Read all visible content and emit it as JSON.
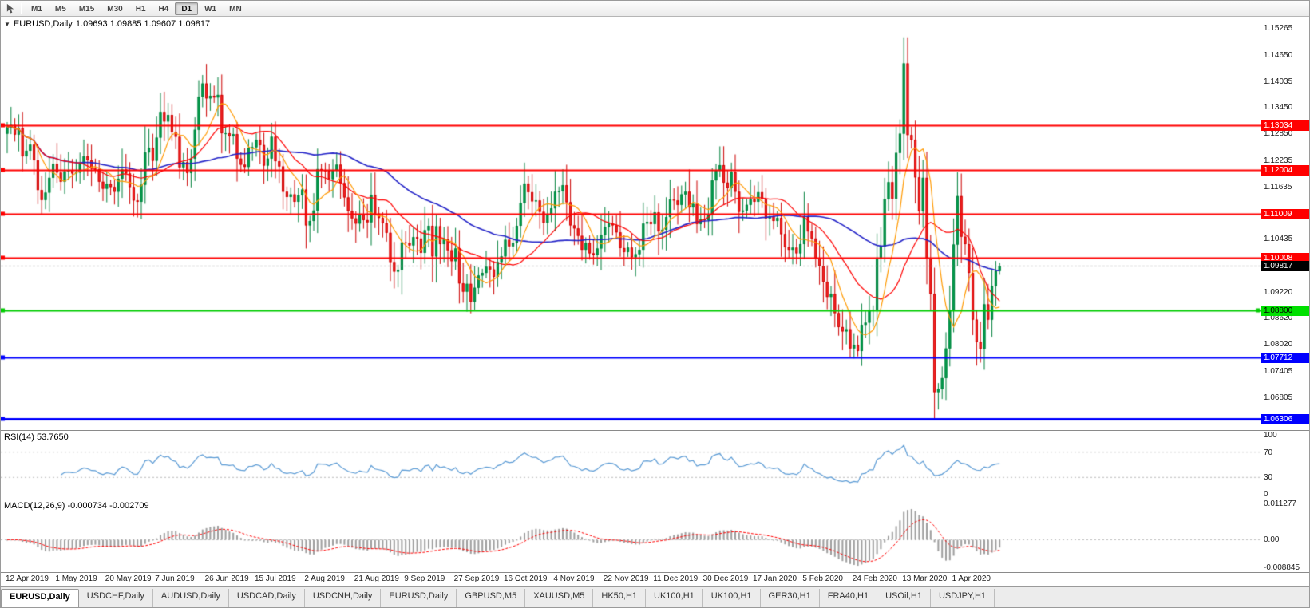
{
  "toolbar": {
    "timeframes": [
      "M1",
      "M5",
      "M15",
      "M30",
      "H1",
      "H4",
      "D1",
      "W1",
      "MN"
    ],
    "active_timeframe": "D1"
  },
  "chart": {
    "symbol_header": "EURUSD,Daily",
    "ohlc_text": "1.09693 1.09885 1.09607 1.09817",
    "price_min": 1.0605,
    "price_max": 1.1552,
    "price_axis_ticks": [
      "1.15265",
      "1.14650",
      "1.14035",
      "1.13450",
      "1.12850",
      "1.12235",
      "1.11635",
      "1.11035",
      "1.10435",
      "1.09820",
      "1.09220",
      "1.08620",
      "1.08020",
      "1.07405",
      "1.06805"
    ],
    "hlines": [
      {
        "label": "1.13034",
        "price": 1.13034,
        "color": "#ff0000",
        "badge_bg": "#ff0000",
        "badge_fg": "#ffffff",
        "width": 2
      },
      {
        "label": "1.12004",
        "price": 1.12004,
        "color": "#ff0000",
        "badge_bg": "#ff0000",
        "badge_fg": "#ffffff",
        "width": 2
      },
      {
        "label": "1.11009",
        "price": 1.11009,
        "color": "#ff0000",
        "badge_bg": "#ff0000",
        "badge_fg": "#ffffff",
        "width": 2
      },
      {
        "label": "1.10008",
        "price": 1.10008,
        "color": "#ff0000",
        "badge_bg": "#ff0000",
        "badge_fg": "#ffffff",
        "width": 2
      },
      {
        "label": "1.08800",
        "price": 1.088,
        "color": "#00cc00",
        "badge_bg": "#00e000",
        "badge_fg": "#000000",
        "width": 2
      },
      {
        "label": "1.07712",
        "price": 1.07712,
        "color": "#0000ff",
        "badge_bg": "#0000ff",
        "badge_fg": "#ffffff",
        "width": 2
      },
      {
        "label": "1.06306",
        "price": 1.06306,
        "color": "#0000ff",
        "badge_bg": "#0000ff",
        "badge_fg": "#ffffff",
        "width": 3
      }
    ],
    "current_price": {
      "label": "1.09817",
      "value": 1.09817,
      "badge_bg": "#000000",
      "badge_fg": "#ffffff",
      "line_color": "#999999"
    }
  },
  "rsi": {
    "label": "RSI(14) 53.7650",
    "ticks": [
      {
        "label": "100",
        "value": 100
      },
      {
        "label": "70",
        "value": 70
      },
      {
        "label": "30",
        "value": 30
      },
      {
        "label": "0",
        "value": 0
      }
    ],
    "levels": [
      70,
      30
    ],
    "range": [
      0,
      100
    ]
  },
  "macd": {
    "label": "MACD(12,26,9) -0.000734 -0.002709",
    "ticks": [
      {
        "label": "0.011277",
        "value": 0.011277
      },
      {
        "label": "0.00",
        "value": 0
      },
      {
        "label": "-0.008845",
        "value": -0.008845
      }
    ],
    "range": [
      -0.0095,
      0.0118
    ]
  },
  "tabs": [
    {
      "label": "EURUSD,Daily",
      "active": true
    },
    {
      "label": "USDCHF,Daily",
      "active": false
    },
    {
      "label": "AUDUSD,Daily",
      "active": false
    },
    {
      "label": "USDCAD,Daily",
      "active": false
    },
    {
      "label": "USDCNH,Daily",
      "active": false
    },
    {
      "label": "EURUSD,Daily",
      "active": false
    },
    {
      "label": "GBPUSD,M5",
      "active": false
    },
    {
      "label": "XAUUSD,M5",
      "active": false
    },
    {
      "label": "HK50,H1",
      "active": false
    },
    {
      "label": "UK100,H1",
      "active": false
    },
    {
      "label": "UK100,H1",
      "active": false
    },
    {
      "label": "GER30,H1",
      "active": false
    },
    {
      "label": "FRA40,H1",
      "active": false
    },
    {
      "label": "USOil,H1",
      "active": false
    },
    {
      "label": "USDJPY,H1",
      "active": false
    }
  ],
  "chart_data": {
    "type": "candlestick",
    "symbol": "EURUSD",
    "timeframe": "Daily",
    "title": "EURUSD,Daily",
    "dates": [
      "12 Apr 2019",
      "1 May 2019",
      "20 May 2019",
      "7 Jun 2019",
      "26 Jun 2019",
      "15 Jul 2019",
      "2 Aug 2019",
      "21 Aug 2019",
      "9 Sep 2019",
      "27 Sep 2019",
      "16 Oct 2019",
      "4 Nov 2019",
      "22 Nov 2019",
      "11 Dec 2019",
      "30 Dec 2019",
      "17 Jan 2020",
      "5 Feb 2020",
      "24 Feb 2020",
      "13 Mar 2020",
      "1 Apr 2020"
    ],
    "label_every_n_candles": 13,
    "closes": [
      1.1299,
      1.1304,
      1.1282,
      1.1297,
      1.1232,
      1.1245,
      1.1259,
      1.1223,
      1.1155,
      1.1132,
      1.1149,
      1.1183,
      1.1215,
      1.1195,
      1.1174,
      1.1198,
      1.1201,
      1.1193,
      1.1195,
      1.1216,
      1.1232,
      1.1223,
      1.1204,
      1.1203,
      1.1174,
      1.1158,
      1.1169,
      1.1162,
      1.1151,
      1.1181,
      1.1202,
      1.1193,
      1.1162,
      1.1131,
      1.1128,
      1.1167,
      1.1241,
      1.1252,
      1.1222,
      1.1275,
      1.1334,
      1.1312,
      1.1327,
      1.1288,
      1.1277,
      1.1207,
      1.1219,
      1.1194,
      1.1227,
      1.1293,
      1.1369,
      1.1399,
      1.1365,
      1.1371,
      1.1367,
      1.1373,
      1.1285,
      1.1285,
      1.1278,
      1.1283,
      1.1227,
      1.1213,
      1.1208,
      1.1252,
      1.1253,
      1.127,
      1.1258,
      1.1211,
      1.1227,
      1.1277,
      1.1221,
      1.1209,
      1.1151,
      1.1139,
      1.1145,
      1.1128,
      1.1143,
      1.1156,
      1.1074,
      1.1084,
      1.1108,
      1.1203,
      1.12,
      1.1199,
      1.118,
      1.12,
      1.1213,
      1.1171,
      1.1138,
      1.1107,
      1.109,
      1.1078,
      1.1099,
      1.1086,
      1.1081,
      1.1144,
      1.1101,
      1.1091,
      1.1079,
      1.1057,
      1.099,
      1.0968,
      1.0972,
      1.1035,
      1.1034,
      1.1028,
      1.1047,
      1.1044,
      1.1011,
      1.1063,
      1.1073,
      1.1003,
      1.1072,
      1.1031,
      1.1042,
      1.1017,
      1.0992,
      1.1021,
      1.0941,
      1.0922,
      1.094,
      1.0899,
      1.0931,
      1.0959,
      1.0965,
      1.0979,
      1.0973,
      1.0956,
      1.099,
      1.1003,
      1.1041,
      1.1026,
      1.1034,
      1.1073,
      1.1125,
      1.117,
      1.115,
      1.1129,
      1.1131,
      1.1105,
      1.108,
      1.1099,
      1.1113,
      1.1151,
      1.1152,
      1.1166,
      1.1127,
      1.1074,
      1.1067,
      1.105,
      1.1018,
      1.1034,
      1.101,
      1.1006,
      1.1021,
      1.1052,
      1.107,
      1.1078,
      1.1074,
      1.1058,
      1.1022,
      1.1013,
      1.1023,
      1.1001,
      1.1008,
      1.1018,
      1.1078,
      1.1082,
      1.1077,
      1.1104,
      1.106,
      1.1064,
      1.1093,
      1.1133,
      1.1131,
      1.1121,
      1.1145,
      1.1151,
      1.1115,
      1.1123,
      1.1077,
      1.1088,
      1.1086,
      1.1098,
      1.1177,
      1.1199,
      1.1212,
      1.1172,
      1.116,
      1.1196,
      1.1151,
      1.1105,
      1.1108,
      1.1121,
      1.1134,
      1.1128,
      1.115,
      1.1135,
      1.109,
      1.1095,
      1.1084,
      1.1091,
      1.1054,
      1.1024,
      1.1018,
      1.1023,
      1.101,
      1.1031,
      1.1093,
      1.106,
      1.1044,
      1.0998,
      1.0981,
      1.0945,
      1.091,
      1.0917,
      1.0873,
      1.0841,
      1.0831,
      1.0836,
      1.0792,
      1.08,
      1.0786,
      1.0846,
      1.0851,
      1.088,
      1.088,
      1.1,
      1.1026,
      1.1134,
      1.1173,
      1.1135,
      1.124,
      1.1284,
      1.1445,
      1.1281,
      1.127,
      1.1184,
      1.1106,
      1.1183,
      1.0999,
      1.0917,
      1.0692,
      1.0699,
      1.0724,
      1.0792,
      1.088,
      1.103,
      1.1141,
      1.1048,
      1.1031,
      1.0965,
      1.0858,
      1.0807,
      1.0791,
      1.0893,
      1.0858,
      1.0935,
      1.09693,
      1.09817
    ],
    "last_candle": {
      "open": 1.09693,
      "high": 1.09885,
      "low": 1.09607,
      "close": 1.09817
    },
    "moving_averages": [
      {
        "name": "fast",
        "period": 8,
        "color": "#ff9900"
      },
      {
        "name": "mid",
        "period": 20,
        "color": "#ff0000"
      },
      {
        "name": "slow",
        "period": 50,
        "color": "#2323c8"
      }
    ],
    "indicators": [
      "RSI(14)",
      "MACD(12,26,9)"
    ]
  },
  "colors": {
    "up_candle": "#00a651",
    "up_stroke": "#00803c",
    "down_candle": "#ff2e2e",
    "down_stroke": "#cc0000",
    "rsi_line": "#5b9bd5",
    "rsi_level": "#bbbbbb",
    "macd_hist": "#9e9e9e",
    "macd_signal": "#ff0000"
  }
}
